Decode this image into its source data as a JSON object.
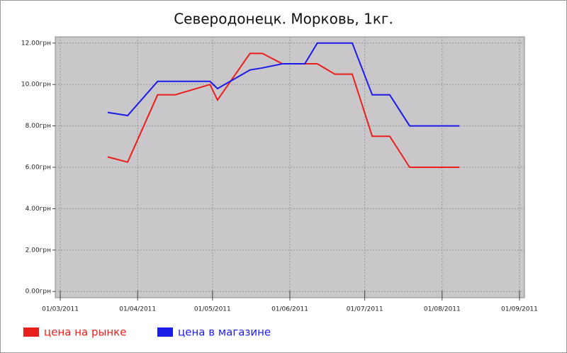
{
  "chart_data": {
    "type": "line",
    "title": "Северодонецк. Морковь, 1кг.",
    "x": [
      "2011-03-20",
      "2011-03-28",
      "2011-04-09",
      "2011-04-16",
      "2011-04-30",
      "2011-05-03",
      "2011-05-16",
      "2011-05-21",
      "2011-05-29",
      "2011-06-07",
      "2011-06-12",
      "2011-06-19",
      "2011-06-26",
      "2011-07-04",
      "2011-07-11",
      "2011-07-19",
      "2011-08-08"
    ],
    "series": [
      {
        "name": "цена на рынке",
        "color": "#e8201c",
        "values": [
          6.5,
          6.25,
          9.5,
          9.5,
          10.0,
          9.25,
          11.5,
          11.5,
          11.0,
          11.0,
          11.0,
          10.5,
          10.5,
          7.5,
          7.5,
          6.0,
          6.0
        ]
      },
      {
        "name": "цена в магазине",
        "color": "#1c1ce8",
        "values": [
          8.65,
          8.5,
          10.15,
          10.15,
          10.15,
          9.8,
          10.7,
          10.8,
          11.0,
          11.0,
          12.0,
          12.0,
          12.0,
          9.5,
          9.5,
          8.0,
          8.0
        ]
      }
    ],
    "xlim": [
      "2011-02-27",
      "2011-09-03"
    ],
    "xticks": [
      {
        "value": "2011-03-01",
        "label": "01/03/2011"
      },
      {
        "value": "2011-04-01",
        "label": "01/04/2011"
      },
      {
        "value": "2011-05-01",
        "label": "01/05/2011"
      },
      {
        "value": "2011-06-01",
        "label": "01/06/2011"
      },
      {
        "value": "2011-07-01",
        "label": "01/07/2011"
      },
      {
        "value": "2011-08-01",
        "label": "01/08/2011"
      },
      {
        "value": "2011-09-01",
        "label": "01/09/2011"
      }
    ],
    "ylim": [
      -0.3,
      12.3
    ],
    "yticks": [
      {
        "value": 0,
        "label": "0.00грн"
      },
      {
        "value": 2,
        "label": "2.00грн"
      },
      {
        "value": 4,
        "label": "4.00грн"
      },
      {
        "value": 6,
        "label": "6.00грн"
      },
      {
        "value": 8,
        "label": "8.00грн"
      },
      {
        "value": 10,
        "label": "10.00грн"
      },
      {
        "value": 12,
        "label": "12.00грн"
      }
    ],
    "grid": true
  }
}
